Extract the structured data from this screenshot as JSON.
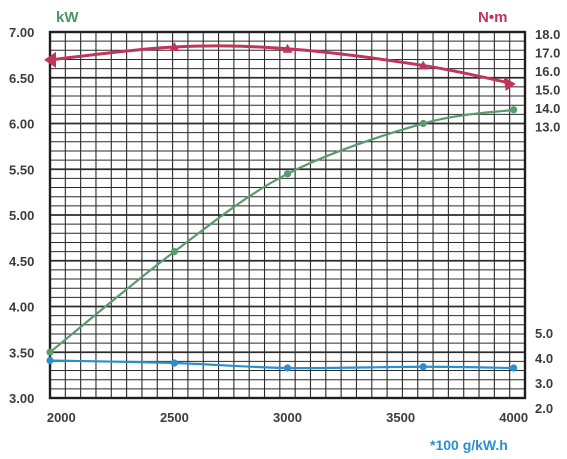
{
  "chart_data": {
    "type": "line",
    "x": [
      1950,
      2500,
      3000,
      3600,
      4000
    ],
    "xticks": [
      "2000",
      "2500",
      "3000",
      "3500",
      "4000"
    ],
    "xlim": [
      1950,
      4050
    ],
    "y_left": {
      "unit": "kW",
      "ticks": [
        "7.00",
        "6.50",
        "6.00",
        "5.50",
        "5.00",
        "4.50",
        "4.00",
        "3.50",
        "3.00"
      ],
      "ylim": [
        3.0,
        7.0
      ]
    },
    "y_right_torque": {
      "unit": "N•m",
      "ticks": [
        "18.0",
        "17.0",
        "16.0",
        "15.0",
        "14.0",
        "13.0"
      ],
      "ylim": [
        13.0,
        18.0
      ]
    },
    "y_right_fuel": {
      "unit": "*100 g/kW.h",
      "ticks": [
        "5.0",
        "4.0",
        "3.0",
        "2.0"
      ],
      "ylim": [
        2.0,
        5.0
      ]
    },
    "grid": true,
    "series": [
      {
        "axis": "left",
        "color": "#5a9a6e",
        "values": [
          3.5,
          4.6,
          5.45,
          6.0,
          6.15
        ]
      },
      {
        "axis": "torque",
        "color": "#c0365a",
        "values": [
          16.6,
          17.3,
          17.2,
          16.3,
          15.3
        ]
      },
      {
        "axis": "fuel",
        "color": "#2a8fcf",
        "values": [
          3.9,
          3.8,
          3.6,
          3.65,
          3.6
        ]
      }
    ]
  }
}
